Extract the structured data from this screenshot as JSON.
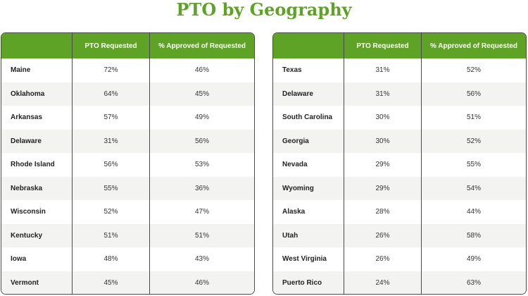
{
  "title": "PTO by Geography",
  "colors": {
    "title": "#5ea226",
    "header_bg": "#5ea226",
    "header_text": "#ffffff",
    "row_alt": "#f3f3f1",
    "border": "#4a4a4a"
  },
  "chart_data": {
    "type": "table",
    "title": "PTO by Geography",
    "tables": [
      {
        "columns": [
          "",
          "PTO Requested",
          "% Approved of Requested"
        ],
        "rows": [
          [
            "Maine",
            "72%",
            "46%"
          ],
          [
            "Oklahoma",
            "64%",
            "45%"
          ],
          [
            "Arkansas",
            "57%",
            "49%"
          ],
          [
            "Delaware",
            "31%",
            "56%"
          ],
          [
            "Rhode Island",
            "56%",
            "53%"
          ],
          [
            "Nebraska",
            "55%",
            "36%"
          ],
          [
            "Wisconsin",
            "52%",
            "47%"
          ],
          [
            "Kentucky",
            "51%",
            "51%"
          ],
          [
            "Iowa",
            "48%",
            "43%"
          ],
          [
            "Vermont",
            "45%",
            "46%"
          ]
        ]
      },
      {
        "columns": [
          "",
          "PTO Requested",
          "% Approved of Requested"
        ],
        "rows": [
          [
            "Texas",
            "31%",
            "52%"
          ],
          [
            "Delaware",
            "31%",
            "56%"
          ],
          [
            "South Carolina",
            "30%",
            "51%"
          ],
          [
            "Georgia",
            "30%",
            "52%"
          ],
          [
            "Nevada",
            "29%",
            "55%"
          ],
          [
            "Wyoming",
            "29%",
            "54%"
          ],
          [
            "Alaska",
            "28%",
            "44%"
          ],
          [
            "Utah",
            "26%",
            "58%"
          ],
          [
            "West Virginia",
            "26%",
            "49%"
          ],
          [
            "Puerto Rico",
            "24%",
            "63%"
          ]
        ]
      }
    ]
  }
}
